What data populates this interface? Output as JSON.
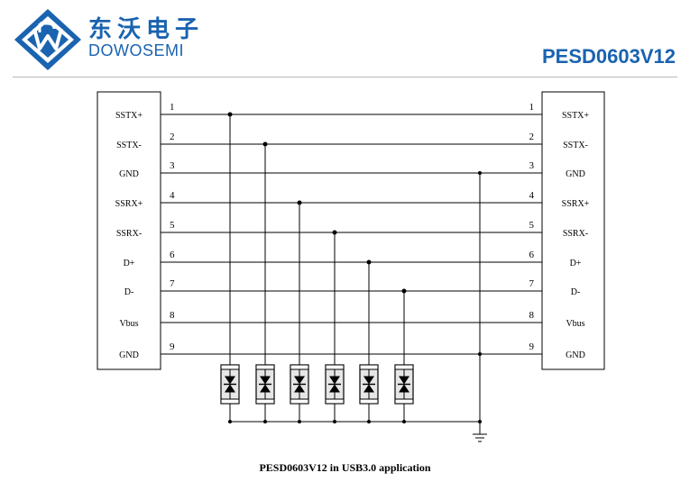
{
  "header": {
    "brand_cn": "东沃电子",
    "brand_en": "DOWOSEMI",
    "part_number": "PESD0603V12"
  },
  "colors": {
    "brand": "#1a63b0",
    "line": "#000000"
  },
  "icons": {
    "logo": "dowosemi-logo-icon",
    "ground": "ground-icon",
    "diode": "tvs-diode-icon"
  },
  "left_connector": {
    "pins": [
      {
        "num": "1",
        "label": "SSTX+"
      },
      {
        "num": "2",
        "label": "SSTX-"
      },
      {
        "num": "3",
        "label": "GND"
      },
      {
        "num": "4",
        "label": "SSRX+"
      },
      {
        "num": "5",
        "label": "SSRX-"
      },
      {
        "num": "6",
        "label": "D+"
      },
      {
        "num": "7",
        "label": "D-"
      },
      {
        "num": "8",
        "label": "Vbus"
      },
      {
        "num": "9",
        "label": "GND"
      }
    ]
  },
  "right_connector": {
    "pins": [
      {
        "num": "1",
        "label": "SSTX+"
      },
      {
        "num": "2",
        "label": "SSTX-"
      },
      {
        "num": "3",
        "label": "GND"
      },
      {
        "num": "4",
        "label": "SSRX+"
      },
      {
        "num": "5",
        "label": "SSRX-"
      },
      {
        "num": "6",
        "label": "D+"
      },
      {
        "num": "7",
        "label": "D-"
      },
      {
        "num": "8",
        "label": "Vbus"
      },
      {
        "num": "9",
        "label": "GND"
      }
    ]
  },
  "caption": "PESD0603V12 in USB3.0 application"
}
